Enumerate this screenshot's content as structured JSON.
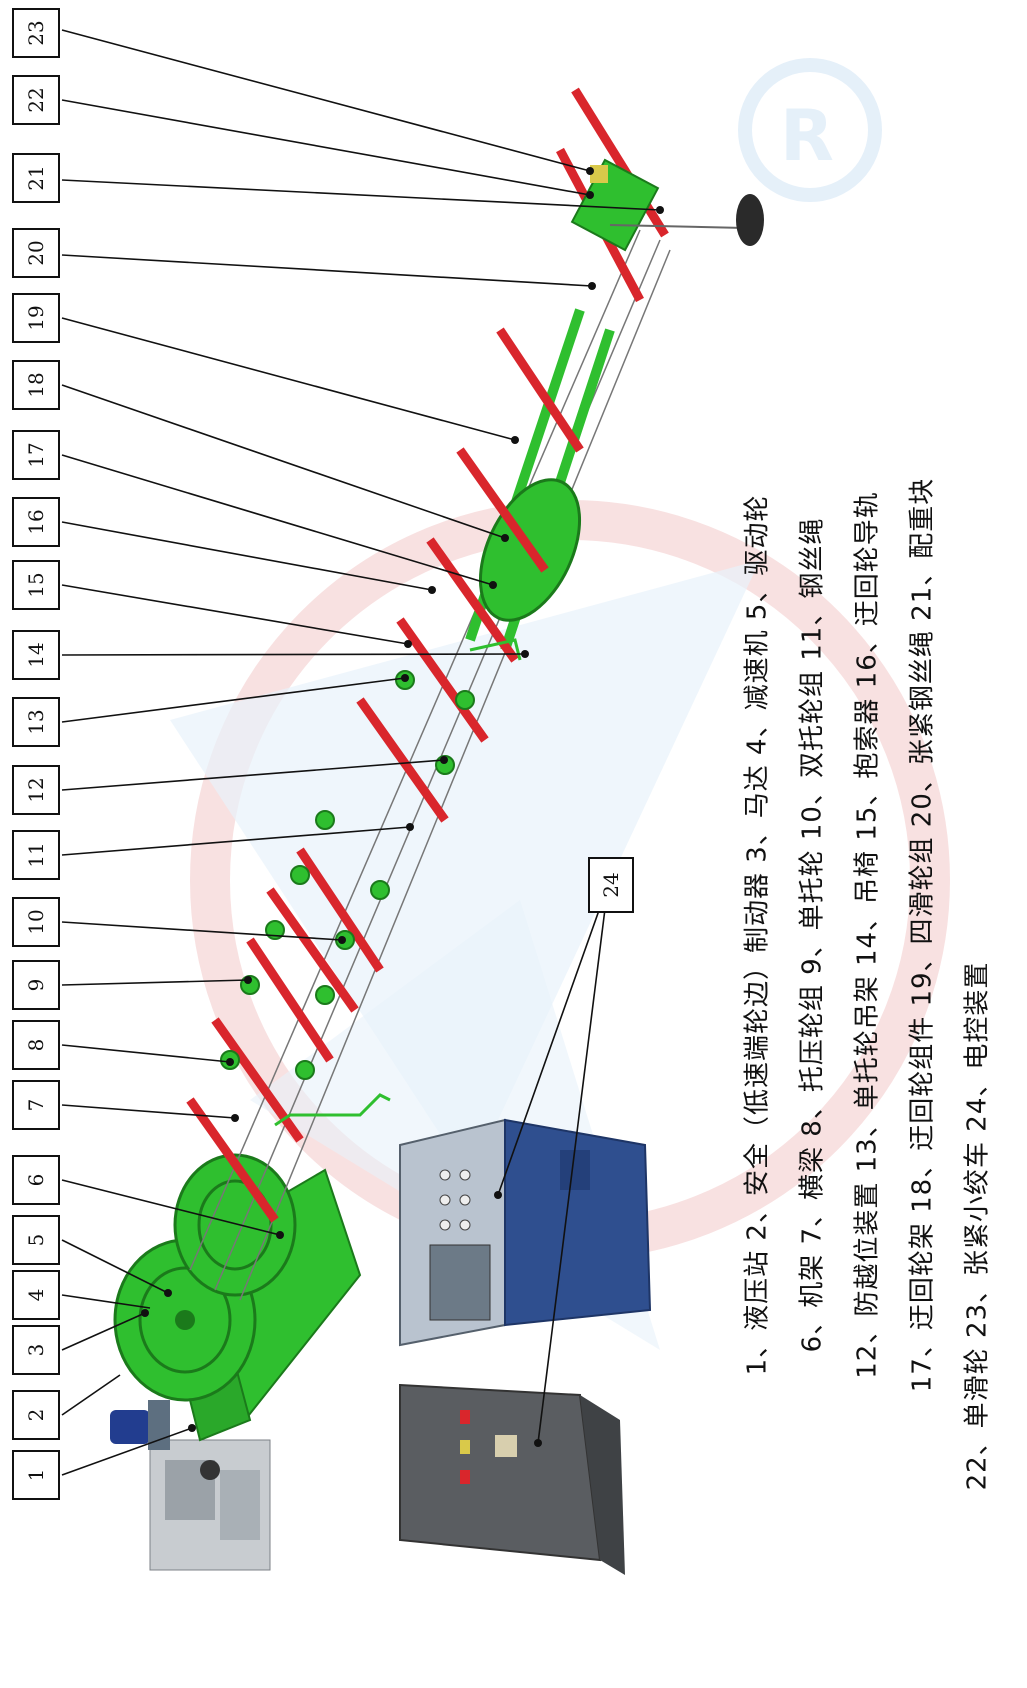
{
  "callouts": [
    {
      "num": "1",
      "name": "液压站"
    },
    {
      "num": "2",
      "name": "安全（低速端轮边）制动器"
    },
    {
      "num": "3",
      "name": "马达"
    },
    {
      "num": "4",
      "name": "减速机"
    },
    {
      "num": "5",
      "name": "驱动轮"
    },
    {
      "num": "6",
      "name": "机架"
    },
    {
      "num": "7",
      "name": "横梁"
    },
    {
      "num": "8",
      "name": "托压轮组"
    },
    {
      "num": "9",
      "name": "单托轮"
    },
    {
      "num": "10",
      "name": "双托轮组"
    },
    {
      "num": "11",
      "name": "钢丝绳"
    },
    {
      "num": "12",
      "name": "防越位装置"
    },
    {
      "num": "13",
      "name": "单托轮吊架"
    },
    {
      "num": "14",
      "name": "吊椅"
    },
    {
      "num": "15",
      "name": "抱索器"
    },
    {
      "num": "16",
      "name": "迂回轮导轨"
    },
    {
      "num": "17",
      "name": "迂回轮架"
    },
    {
      "num": "18",
      "name": "迂回轮组件"
    },
    {
      "num": "19",
      "name": "四滑轮组"
    },
    {
      "num": "20",
      "name": "张紧钢丝绳"
    },
    {
      "num": "21",
      "name": "配重块"
    },
    {
      "num": "22",
      "name": "单滑轮"
    },
    {
      "num": "23",
      "name": "张紧小绞车"
    },
    {
      "num": "24",
      "name": "电控装置"
    }
  ],
  "legend": {
    "line1": "1、液压站    2、安全（低速端轮边）制动器    3、马达    4、减速机    5、驱动轮",
    "line2": "6、机架    7、横梁    8、托压轮组    9、单托轮    10、双托轮组    11、钢丝绳",
    "line3": "12、防越位装置    13、单托轮吊架    14、吊椅    15、抱索器    16、迂回轮导轨",
    "line4": "17、迂回轮架    18、迂回轮组件    19、四滑轮组    20、张紧钢丝绳    21、配重块",
    "line5": "22、单滑轮    23、张紧小绞车    24、电控装置"
  },
  "colors": {
    "frame_green": "#2fbf2f",
    "beam_red": "#d9262c",
    "cabinet_blue": "#2f4f8f",
    "box_gray": "#5a5d61",
    "watermark_red": "#f3c9c9",
    "watermark_blue": "#cfe3f5"
  }
}
